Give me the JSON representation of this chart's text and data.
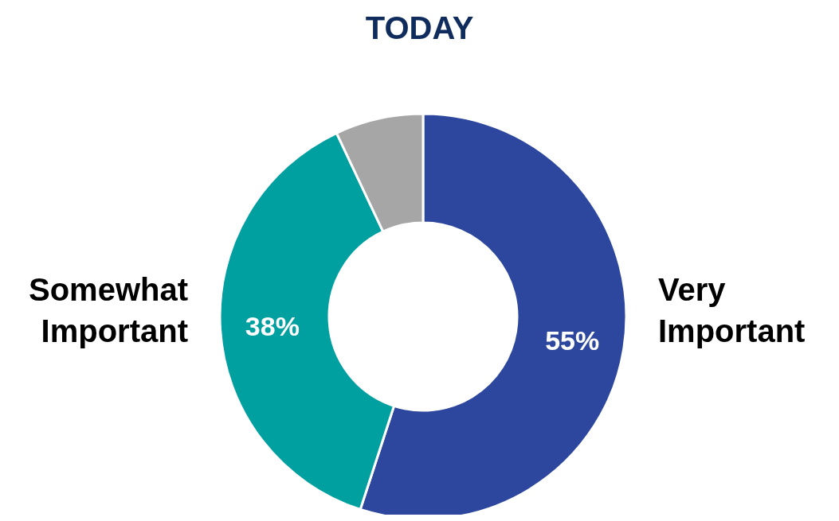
{
  "chart_data": {
    "type": "donut",
    "title": "TODAY",
    "categories": [
      "Very Important",
      "Somewhat Important",
      null
    ],
    "values": [
      55,
      38,
      7
    ],
    "value_labels": [
      "55%",
      "38%",
      null
    ],
    "colors": [
      "#2e479e",
      "#00a0a0",
      "#a6a6a6"
    ],
    "legend": false
  }
}
